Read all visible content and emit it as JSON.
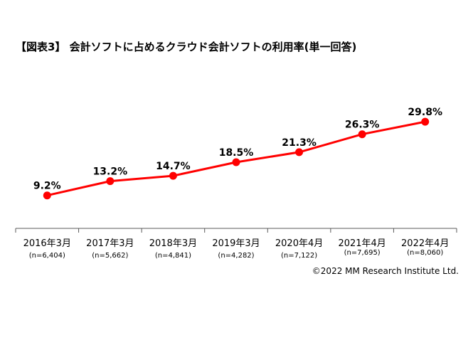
{
  "title": "【図表3】 会計ソフトに占めるクラウド会計ソフトの利用率(単一回答)",
  "copyright": "©2022 MM Research Institute Ltd.",
  "chart_data": {
    "type": "line",
    "categories": [
      "2016年3月",
      "2017年3月",
      "2018年3月",
      "2019年3月",
      "2020年4月",
      "2021年4月",
      "2022年4月"
    ],
    "sample_sizes": [
      "(n=6,404)",
      "(n=5,662)",
      "(n=4,841)",
      "(n=4,282)",
      "(n=7,122)",
      "(n=7,695)",
      "(n=8,060)"
    ],
    "values": [
      9.2,
      13.2,
      14.7,
      18.5,
      21.3,
      26.3,
      29.8
    ],
    "data_labels": [
      "9.2%",
      "13.2%",
      "14.7%",
      "18.5%",
      "21.3%",
      "26.3%",
      "29.8%"
    ],
    "title": "【図表3】 会計ソフトに占めるクラウド会計ソフトの利用率(単一回答)",
    "xlabel": "",
    "ylabel": "",
    "ylim": [
      0,
      35
    ],
    "grid": false,
    "legend": "none",
    "colors": {
      "line": "#ff0000",
      "marker": "#ff0000",
      "axis": "#595959"
    }
  }
}
